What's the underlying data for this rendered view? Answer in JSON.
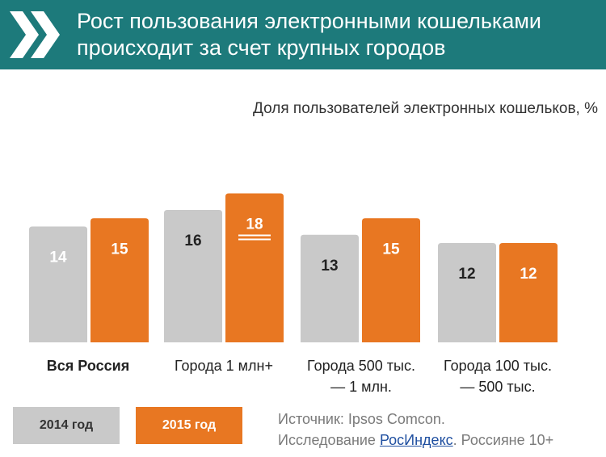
{
  "header": {
    "title_line1": "Рост пользования электронными кошельками",
    "title_line2": "происходит за счет крупных городов",
    "icon": "double-chevron-right-icon"
  },
  "colors": {
    "header_bg": "#1d7a7b",
    "series_2014": "#c9c9c9",
    "series_2015": "#e87722"
  },
  "chart_data": {
    "type": "bar",
    "title": "Доля пользователей электронных кошельков, %",
    "categories": [
      [
        "Вся Россия"
      ],
      [
        "Города 1 млн+"
      ],
      [
        "Города 500 тыс.",
        "— 1 млн."
      ],
      [
        "Города 100 тыс.",
        "— 500 тыс."
      ]
    ],
    "series": [
      {
        "name": "2014 год",
        "values": [
          14,
          16,
          13,
          12
        ]
      },
      {
        "name": "2015 год",
        "values": [
          15,
          18,
          15,
          12
        ]
      }
    ],
    "highlight": {
      "series": 1,
      "category": 1,
      "note": "double underline"
    },
    "legend_position": "bottom-left",
    "grid": false
  },
  "legend": {
    "label_2014": "2014 год",
    "label_2015": "2015 год"
  },
  "source": {
    "line1": "Источник: Ipsos Comcon.",
    "line2_prefix": "Исследование ",
    "line2_link": "РосИндекс",
    "line2_suffix": ". Россияне 10+"
  }
}
